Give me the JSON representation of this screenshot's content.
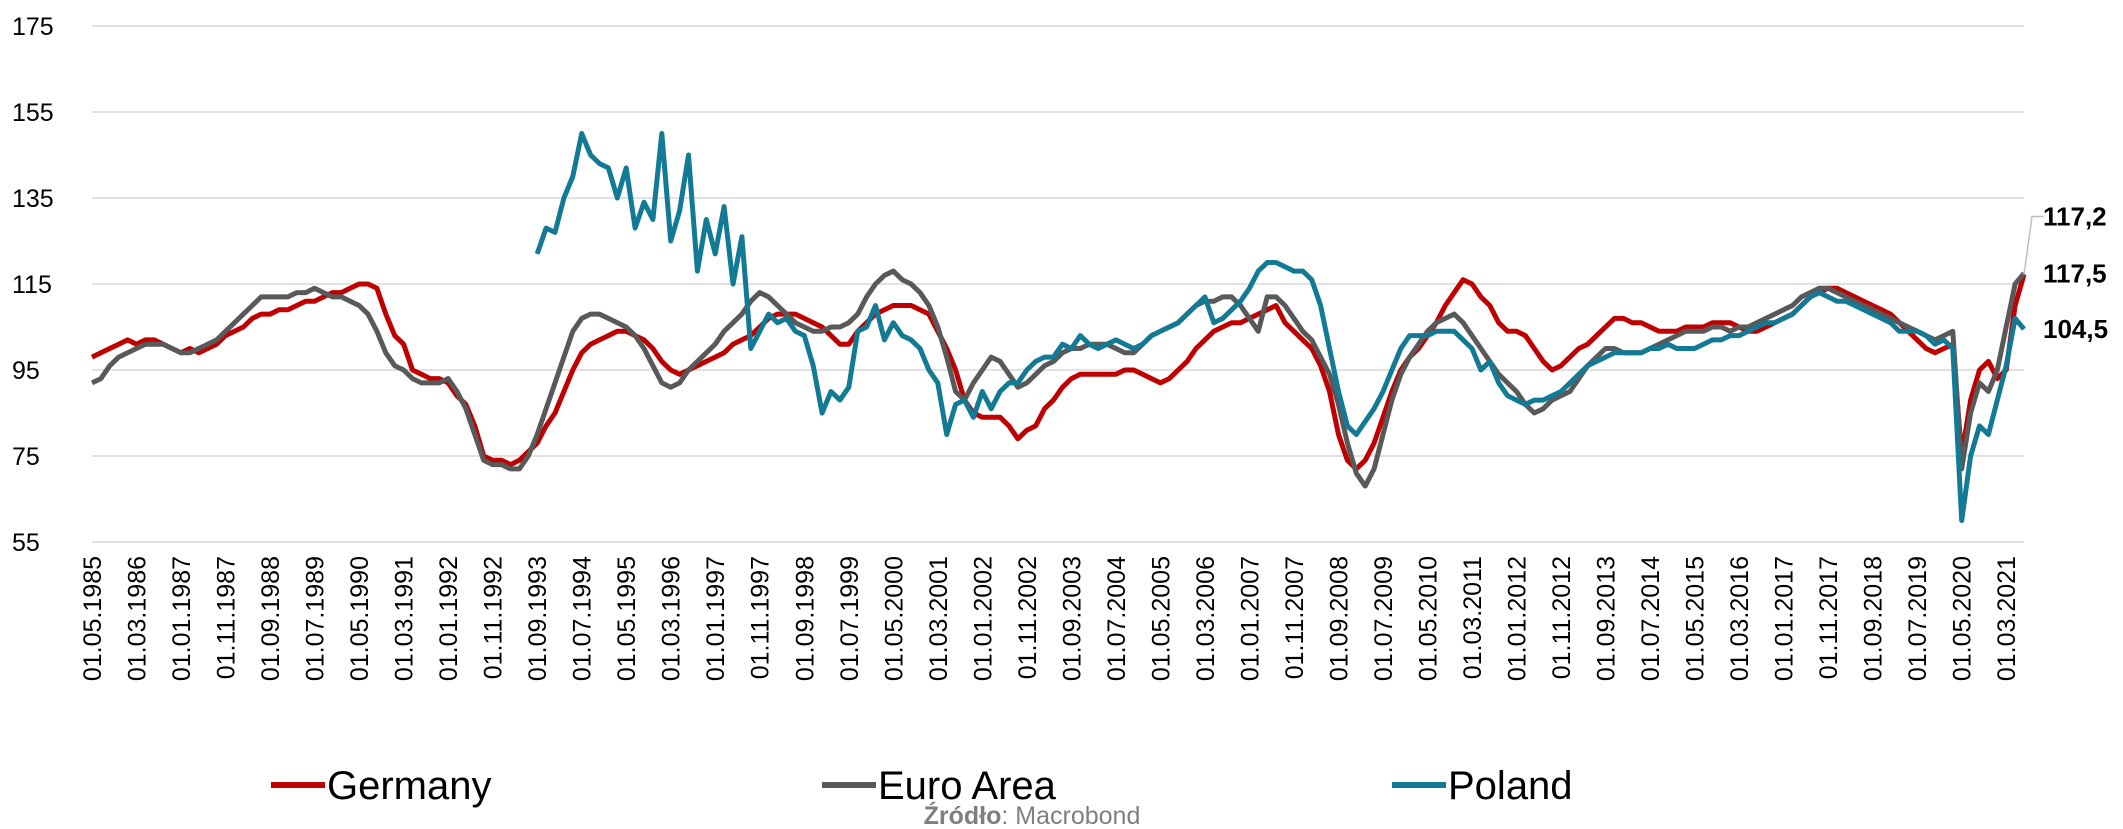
{
  "chart_data": {
    "type": "line",
    "categories": [
      "01.05.1985",
      null,
      null,
      null,
      null,
      "01.03.1986",
      null,
      null,
      null,
      null,
      "01.01.1987",
      null,
      null,
      null,
      null,
      "01.11.1987",
      null,
      null,
      null,
      null,
      "01.09.1988",
      null,
      null,
      null,
      null,
      "01.07.1989",
      null,
      null,
      null,
      null,
      "01.05.1990",
      null,
      null,
      null,
      null,
      "01.03.1991",
      null,
      null,
      null,
      null,
      "01.01.1992",
      null,
      null,
      null,
      null,
      "01.11.1992",
      null,
      null,
      null,
      null,
      "01.09.1993",
      null,
      null,
      null,
      null,
      "01.07.1994",
      null,
      null,
      null,
      null,
      "01.05.1995",
      null,
      null,
      null,
      null,
      "01.03.1996",
      null,
      null,
      null,
      null,
      "01.01.1997",
      null,
      null,
      null,
      null,
      "01.11.1997",
      null,
      null,
      null,
      null,
      "01.09.1998",
      null,
      null,
      null,
      null,
      "01.07.1999",
      null,
      null,
      null,
      null,
      "01.05.2000",
      null,
      null,
      null,
      null,
      "01.03.2001",
      null,
      null,
      null,
      null,
      "01.01.2002",
      null,
      null,
      null,
      null,
      "01.11.2002",
      null,
      null,
      null,
      null,
      "01.09.2003",
      null,
      null,
      null,
      null,
      "01.07.2004",
      null,
      null,
      null,
      null,
      "01.05.2005",
      null,
      null,
      null,
      null,
      "01.03.2006",
      null,
      null,
      null,
      null,
      "01.01.2007",
      null,
      null,
      null,
      null,
      "01.11.2007",
      null,
      null,
      null,
      null,
      "01.09.2008",
      null,
      null,
      null,
      null,
      "01.07.2009",
      null,
      null,
      null,
      null,
      "01.05.2010",
      null,
      null,
      null,
      null,
      "01.03.2011",
      null,
      null,
      null,
      null,
      "01.01.2012",
      null,
      null,
      null,
      null,
      "01.11.2012",
      null,
      null,
      null,
      null,
      "01.09.2013",
      null,
      null,
      null,
      null,
      "01.07.2014",
      null,
      null,
      null,
      null,
      "01.05.2015",
      null,
      null,
      null,
      null,
      "01.03.2016",
      null,
      null,
      null,
      null,
      "01.01.2017",
      null,
      null,
      null,
      null,
      "01.11.2017",
      null,
      null,
      null,
      null,
      "01.09.2018",
      null,
      null,
      null,
      null,
      "01.07.2019",
      null,
      null,
      null,
      null,
      "01.05.2020",
      null,
      null,
      null,
      null,
      "01.03.2021",
      null,
      null
    ],
    "series": [
      {
        "name": "Germany",
        "color": "#c00000",
        "values": [
          98,
          99,
          100,
          101,
          102,
          101,
          102,
          102,
          101,
          100,
          99,
          100,
          99,
          100,
          101,
          103,
          104,
          105,
          107,
          108,
          108,
          109,
          109,
          110,
          111,
          111,
          112,
          113,
          113,
          114,
          115,
          115,
          114,
          108,
          103,
          101,
          95,
          94,
          93,
          93,
          92,
          89,
          87,
          82,
          75,
          74,
          74,
          73,
          74,
          76,
          78,
          82,
          85,
          90,
          95,
          99,
          101,
          102,
          103,
          104,
          104,
          103,
          102,
          100,
          97,
          95,
          94,
          95,
          96,
          97,
          98,
          99,
          101,
          102,
          103,
          105,
          107,
          108,
          108,
          108,
          107,
          106,
          105,
          103,
          101,
          101,
          104,
          106,
          108,
          109,
          110,
          110,
          110,
          109,
          108,
          104,
          100,
          95,
          88,
          85,
          84,
          84,
          84,
          82,
          79,
          81,
          82,
          86,
          88,
          91,
          93,
          94,
          94,
          94,
          94,
          94,
          95,
          95,
          94,
          93,
          92,
          93,
          95,
          97,
          100,
          102,
          104,
          105,
          106,
          106,
          107,
          108,
          109,
          110,
          106,
          104,
          102,
          100,
          96,
          90,
          80,
          74,
          72,
          74,
          78,
          84,
          90,
          95,
          98,
          100,
          103,
          106,
          110,
          113,
          116,
          115,
          112,
          110,
          106,
          104,
          104,
          103,
          100,
          97,
          95,
          96,
          98,
          100,
          101,
          103,
          105,
          107,
          107,
          106,
          106,
          105,
          104,
          104,
          104,
          105,
          105,
          105,
          106,
          106,
          106,
          105,
          104,
          104,
          105,
          106,
          107,
          108,
          110,
          112,
          113,
          114,
          114,
          113,
          112,
          111,
          110,
          109,
          108,
          106,
          104,
          102,
          100,
          99,
          100,
          101,
          75,
          88,
          95,
          97,
          93,
          95,
          110,
          117.2
        ],
        "value_labels": {
          "217": "117,2"
        }
      },
      {
        "name": "Euro Area",
        "color": "#595959",
        "values": [
          92,
          93,
          96,
          98,
          99,
          100,
          101,
          101,
          101,
          100,
          99,
          99,
          100,
          101,
          102,
          104,
          106,
          108,
          110,
          112,
          112,
          112,
          112,
          113,
          113,
          114,
          113,
          112,
          112,
          111,
          110,
          108,
          104,
          99,
          96,
          95,
          93,
          92,
          92,
          92,
          93,
          90,
          86,
          80,
          74,
          73,
          73,
          72,
          72,
          75,
          80,
          86,
          92,
          98,
          104,
          107,
          108,
          108,
          107,
          106,
          105,
          103,
          100,
          96,
          92,
          91,
          92,
          95,
          97,
          99,
          101,
          104,
          106,
          108,
          111,
          113,
          112,
          110,
          108,
          106,
          105,
          104,
          104,
          105,
          105,
          106,
          108,
          112,
          115,
          117,
          118,
          116,
          115,
          113,
          110,
          105,
          98,
          90,
          88,
          92,
          95,
          98,
          97,
          94,
          91,
          92,
          94,
          96,
          97,
          99,
          100,
          100,
          101,
          101,
          101,
          100,
          99,
          99,
          101,
          103,
          104,
          105,
          106,
          108,
          110,
          111,
          111,
          112,
          112,
          110,
          107,
          104,
          112,
          112,
          110,
          107,
          104,
          102,
          98,
          94,
          87,
          78,
          71,
          68,
          72,
          80,
          88,
          94,
          98,
          101,
          104,
          106,
          107,
          108,
          106,
          103,
          100,
          97,
          94,
          92,
          90,
          87,
          85,
          86,
          88,
          89,
          90,
          93,
          96,
          98,
          100,
          100,
          99,
          99,
          99,
          100,
          101,
          102,
          103,
          104,
          104,
          104,
          105,
          105,
          104,
          105,
          105,
          106,
          107,
          108,
          109,
          110,
          112,
          113,
          114,
          114,
          113,
          112,
          111,
          110,
          109,
          108,
          107,
          106,
          105,
          104,
          103,
          102,
          103,
          104,
          72,
          85,
          92,
          90,
          95,
          105,
          115,
          117.5
        ],
        "value_labels": {
          "217": "117,5"
        }
      },
      {
        "name": "Poland",
        "color": "#137a96",
        "values": [
          null,
          null,
          null,
          null,
          null,
          null,
          null,
          null,
          null,
          null,
          null,
          null,
          null,
          null,
          null,
          null,
          null,
          null,
          null,
          null,
          null,
          null,
          null,
          null,
          null,
          null,
          null,
          null,
          null,
          null,
          null,
          null,
          null,
          null,
          null,
          null,
          null,
          null,
          null,
          null,
          null,
          null,
          null,
          null,
          null,
          null,
          null,
          null,
          null,
          null,
          122,
          128,
          127,
          135,
          140,
          150,
          145,
          143,
          142,
          135,
          142,
          128,
          134,
          130,
          150,
          125,
          132,
          145,
          118,
          130,
          122,
          133,
          115,
          126,
          100,
          104,
          108,
          106,
          107,
          104,
          103,
          96,
          85,
          90,
          88,
          91,
          104,
          105,
          110,
          102,
          106,
          103,
          102,
          100,
          95,
          92,
          80,
          87,
          88,
          84,
          90,
          86,
          90,
          92,
          92,
          95,
          97,
          98,
          98,
          101,
          100,
          103,
          101,
          100,
          101,
          102,
          101,
          100,
          101,
          103,
          104,
          105,
          106,
          108,
          110,
          112,
          106,
          107,
          109,
          111,
          114,
          118,
          120,
          120,
          119,
          118,
          118,
          116,
          110,
          100,
          90,
          82,
          80,
          83,
          86,
          90,
          95,
          100,
          103,
          103,
          103,
          104,
          104,
          104,
          102,
          100,
          95,
          97,
          92,
          89,
          88,
          87,
          88,
          88,
          89,
          90,
          92,
          94,
          96,
          97,
          98,
          99,
          99,
          99,
          99,
          100,
          100,
          101,
          100,
          100,
          100,
          101,
          102,
          102,
          103,
          103,
          104,
          105,
          106,
          106,
          107,
          108,
          110,
          112,
          113,
          112,
          111,
          111,
          110,
          109,
          108,
          107,
          106,
          104,
          104,
          104,
          103,
          101,
          102,
          100,
          60,
          75,
          82,
          80,
          88,
          96,
          107,
          104.5
        ],
        "value_labels": {
          "217": "104,5"
        }
      }
    ],
    "ylim": [
      55,
      175
    ],
    "yticks": [
      55,
      75,
      95,
      115,
      135,
      155,
      175
    ],
    "grid": true,
    "legend": "bottom",
    "source": {
      "label": "Źródło",
      "text": ": Macrobond"
    }
  }
}
